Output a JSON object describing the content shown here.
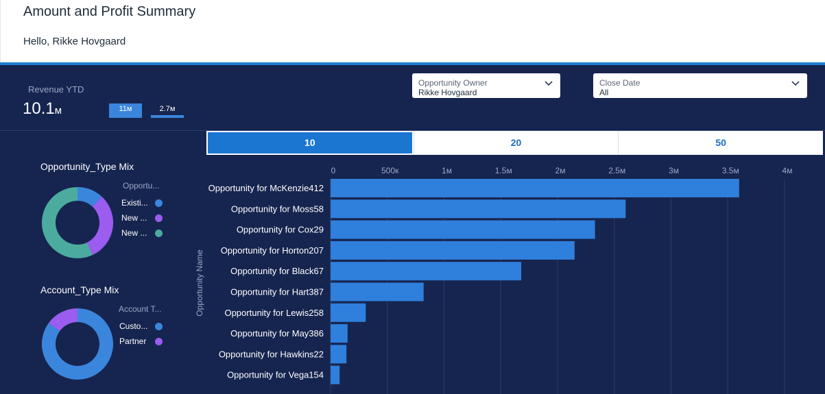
{
  "header": {
    "title": "Amount and Profit Summary",
    "greeting": "Hello, Rikke Hovgaard"
  },
  "colors": {
    "header_bg": "#ffffff",
    "accent": "#1b7fd1",
    "dashboard_bg": "#16254f",
    "bar": "#2f7fdc",
    "blue": "#3b86dd",
    "purple": "#9b5cf0",
    "teal": "#4cab9f"
  },
  "revenue": {
    "label": "Revenue YTD",
    "value": "10.1",
    "unit": "м",
    "pill_a": "11м",
    "pill_b": "2.7м"
  },
  "filters": {
    "owner": {
      "label": "Opportunity Owner",
      "value": "Rikke Hovgaard",
      "icon": "chevron-down-icon"
    },
    "close_date": {
      "label": "Close Date",
      "value": "All",
      "icon": "chevron-down-icon"
    }
  },
  "tabs": [
    {
      "label": "10",
      "active": true
    },
    {
      "label": "20",
      "active": false
    },
    {
      "label": "50",
      "active": false
    }
  ],
  "opportunity_mix": {
    "title": "Opportunity_Type Mix",
    "legend_title": "Opportu...",
    "items": [
      {
        "label": "Existi...",
        "color": "#3b86dd"
      },
      {
        "label": "New ...",
        "color": "#9b5cf0"
      },
      {
        "label": "New ...",
        "color": "#4cab9f"
      }
    ]
  },
  "account_mix": {
    "title": "Account_Type Mix",
    "legend_title": "Account T...",
    "items": [
      {
        "label": "Custo...",
        "color": "#3b86dd"
      },
      {
        "label": "Partner",
        "color": "#9b5cf0"
      }
    ]
  },
  "chart_data": [
    {
      "type": "pie",
      "title": "Opportunity_Type Mix",
      "categories": [
        "Existi...",
        "New ...",
        "New ..."
      ],
      "values": [
        0.12,
        0.31,
        0.57
      ],
      "colors": [
        "#3b86dd",
        "#9b5cf0",
        "#4cab9f"
      ]
    },
    {
      "type": "pie",
      "title": "Account_Type Mix",
      "categories": [
        "Custo...",
        "Partner"
      ],
      "values": [
        0.85,
        0.15
      ],
      "colors": [
        "#3b86dd",
        "#9b5cf0"
      ]
    },
    {
      "type": "bar",
      "orientation": "horizontal",
      "ylabel": "Opportunity Name",
      "xlabel": "",
      "categories": [
        "Opportunity for McKenzie412",
        "Opportunity for Moss58",
        "Opportunity for Cox29",
        "Opportunity for Horton207",
        "Opportunity for Black67",
        "Opportunity for Hart387",
        "Opportunity for Lewis258",
        "Opportunity for May386",
        "Opportunity for Hawkins22",
        "Opportunity for Vega154"
      ],
      "values": [
        3600000,
        2600000,
        2330000,
        2150000,
        1680000,
        820000,
        310000,
        150000,
        140000,
        80000
      ],
      "ticks": [
        0,
        500000,
        1000000,
        1500000,
        2000000,
        2500000,
        3000000,
        3500000,
        4000000
      ],
      "tick_labels": [
        "0",
        "500к",
        "1м",
        "1.5м",
        "2м",
        "2.5м",
        "3м",
        "3.5м",
        "4м"
      ],
      "xlim": [
        0,
        4000000
      ],
      "grid": true,
      "color": "#2f7fdc"
    }
  ]
}
